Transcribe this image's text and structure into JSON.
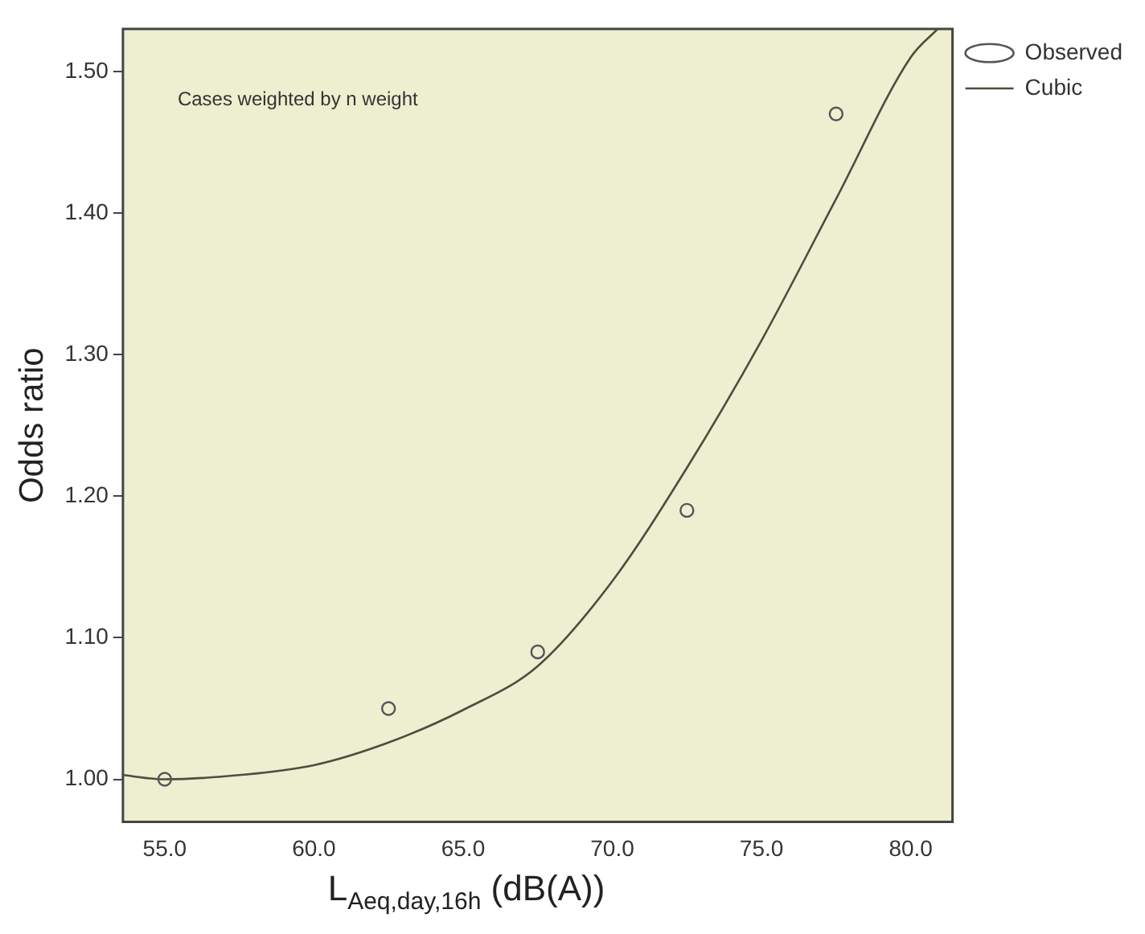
{
  "chart_data": {
    "type": "scatter",
    "xlabel": "L$_{Aeq,day,16h}$ (dB(A))",
    "ylabel": "Odds ratio",
    "annotations": [
      "Cases weighted by n weight"
    ],
    "xlim": [
      53.6,
      81.4
    ],
    "ylim": [
      0.97,
      1.53
    ],
    "xticks": [
      {
        "value": 55,
        "label": "55.0"
      },
      {
        "value": 60,
        "label": "60.0"
      },
      {
        "value": 65,
        "label": "65.0"
      },
      {
        "value": 70,
        "label": "70.0"
      },
      {
        "value": 75,
        "label": "75.0"
      },
      {
        "value": 80,
        "label": "80.0"
      }
    ],
    "yticks": [
      {
        "value": 1,
        "label": "1.00"
      },
      {
        "value": 1.1,
        "label": "1.10"
      },
      {
        "value": 1.2,
        "label": "1.20"
      },
      {
        "value": 1.3,
        "label": "1.30"
      },
      {
        "value": 1.4,
        "label": "1.40"
      },
      {
        "value": 1.5,
        "label": "1.50"
      }
    ],
    "grid": false,
    "legend": "top right",
    "series": [
      {
        "name": "Observed",
        "type": "scatter",
        "marker": "circle",
        "color": "#555555",
        "x": [
          55,
          62.5,
          67.5,
          72.5,
          77.5
        ],
        "values": [
          1.0,
          1.05,
          1.09,
          1.19,
          1.47
        ]
      },
      {
        "name": "Cubic",
        "type": "line",
        "marker": "none",
        "line_style": "solid",
        "color": "#4d4d40",
        "x": [
          53.6,
          55,
          57.5,
          60,
          62.5,
          65,
          67.5,
          70,
          72.5,
          75,
          77.5,
          80,
          80.9
        ],
        "values": [
          1.003,
          1.0,
          1.003,
          1.01,
          1.026,
          1.049,
          1.08,
          1.14,
          1.22,
          1.31,
          1.41,
          1.51,
          1.53
        ]
      }
    ]
  }
}
